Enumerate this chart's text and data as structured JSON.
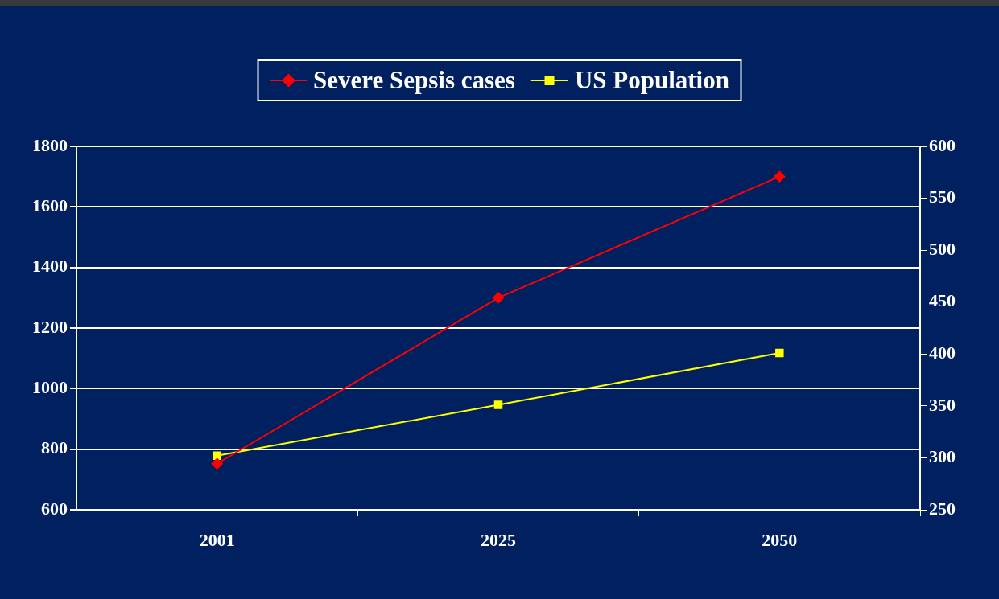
{
  "chart_data": {
    "type": "line",
    "categories": [
      "2001",
      "2025",
      "2050"
    ],
    "series": [
      {
        "name": "Severe Sepsis cases",
        "color": "#ff0000",
        "marker": "diamond",
        "values": [
          752,
          1300,
          1700
        ]
      },
      {
        "name": "US Population",
        "color": "#ffff00",
        "marker": "square",
        "axis": "y2",
        "values": [
          302,
          351,
          401
        ]
      }
    ],
    "ylim": [
      600,
      1800
    ],
    "yticks": [
      600,
      800,
      1000,
      1200,
      1400,
      1600,
      1800
    ],
    "y2lim": [
      250,
      600
    ],
    "y2ticks": [
      250,
      300,
      350,
      400,
      450,
      500,
      550,
      600
    ],
    "grid": "y",
    "legend": "top",
    "line_style": "solid"
  }
}
